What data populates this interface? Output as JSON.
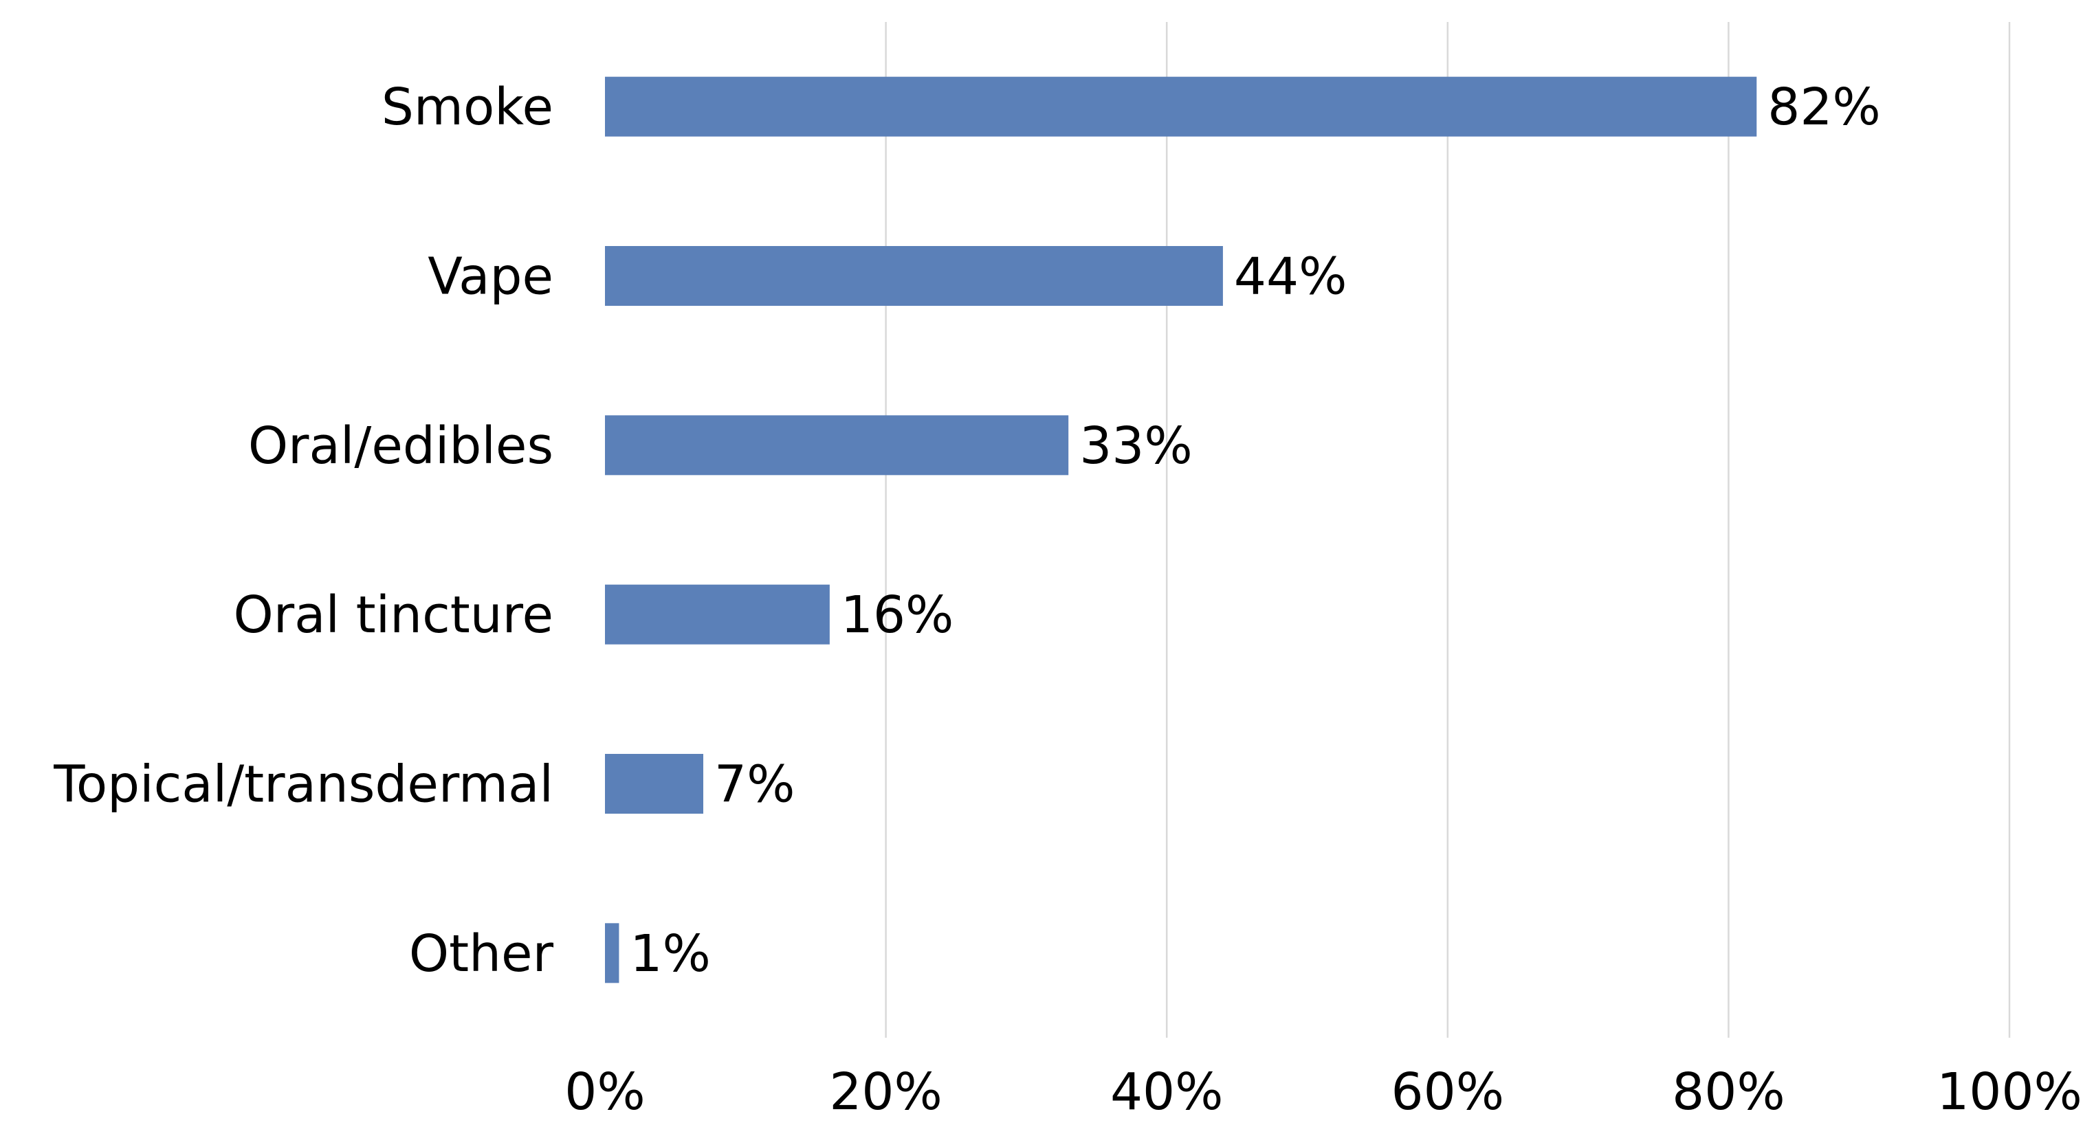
{
  "chart_data": {
    "type": "bar",
    "orientation": "horizontal",
    "categories": [
      "Smoke",
      "Vape",
      "Oral/edibles",
      "Oral tincture",
      "Topical/transdermal",
      "Other"
    ],
    "values": [
      82,
      44,
      33,
      16,
      7,
      1
    ],
    "data_labels": [
      "82%",
      "44%",
      "33%",
      "16%",
      "7%",
      "1%"
    ],
    "xlim": [
      0,
      100
    ],
    "x_ticks": [
      0,
      20,
      40,
      60,
      80,
      100
    ],
    "x_tick_labels": [
      "0%",
      "20%",
      "40%",
      "60%",
      "80%",
      "100%"
    ],
    "value_unit": "%",
    "title": "",
    "xlabel": "",
    "ylabel": "",
    "grid": "vertical",
    "legend": "none",
    "bar_color": "#5b80b8",
    "grid_color": "#d9d9d9"
  }
}
